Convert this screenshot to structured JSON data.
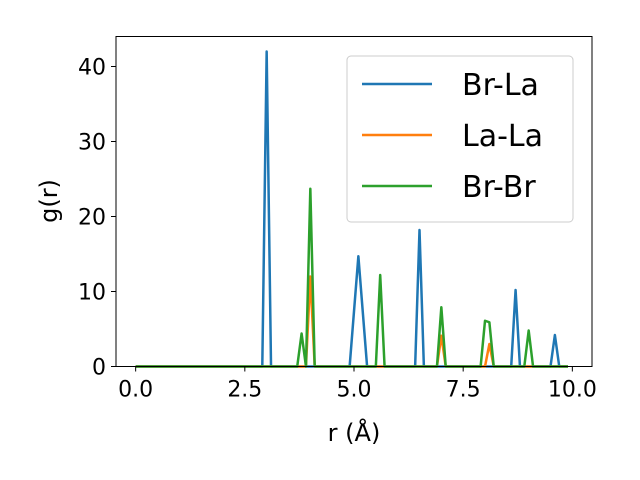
{
  "chart_data": {
    "type": "line",
    "xlabel": "r (Å)",
    "ylabel": "g(r)",
    "xlim": [
      -0.45,
      10.45
    ],
    "ylim": [
      0,
      44
    ],
    "xticks": [
      0.0,
      2.5,
      5.0,
      7.5,
      10.0
    ],
    "xtick_labels": [
      "0.0",
      "2.5",
      "5.0",
      "7.5",
      "10.0"
    ],
    "yticks": [
      0,
      10,
      20,
      30,
      40
    ],
    "ytick_labels": [
      "0",
      "10",
      "20",
      "30",
      "40"
    ],
    "grid": false,
    "legend_position": "top-right",
    "series": [
      {
        "name": "Br-La",
        "color": "#1f77b4",
        "x": [
          0.0,
          2.9,
          3.0,
          3.1,
          4.9,
          5.1,
          5.3,
          6.4,
          6.5,
          6.6,
          8.6,
          8.7,
          8.8,
          9.5,
          9.6,
          9.7,
          9.9
        ],
        "y": [
          0,
          0,
          42,
          0,
          0,
          14.7,
          0,
          0,
          18.2,
          0,
          0,
          10.2,
          0,
          0,
          4.2,
          0,
          0
        ]
      },
      {
        "name": "La-La",
        "color": "#ff7f0e",
        "x": [
          0.0,
          3.9,
          4.0,
          4.1,
          6.9,
          7.0,
          7.1,
          7.9,
          8.0,
          8.1,
          8.2,
          9.9
        ],
        "y": [
          0,
          0,
          12,
          0,
          0,
          4.1,
          0,
          0,
          0,
          3,
          0,
          0
        ]
      },
      {
        "name": "Br-Br",
        "color": "#2ca02c",
        "x": [
          0.0,
          3.7,
          3.8,
          3.9,
          4.0,
          4.1,
          5.5,
          5.6,
          5.7,
          6.9,
          7.0,
          7.1,
          7.9,
          8.0,
          8.1,
          8.2,
          8.9,
          9.0,
          9.1,
          9.9
        ],
        "y": [
          0,
          0,
          4.4,
          0,
          23.7,
          0,
          0,
          12.2,
          0,
          0,
          7.9,
          0,
          0,
          6.1,
          5.9,
          0,
          0,
          4.8,
          0,
          0
        ]
      }
    ]
  }
}
